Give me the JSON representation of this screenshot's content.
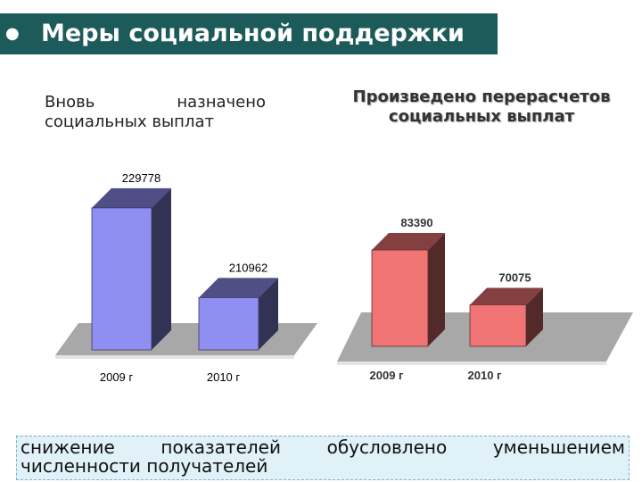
{
  "title": "Меры социальной поддержки",
  "note": "снижение показателей обусловлено уменьшением численности получателей",
  "chart_data": [
    {
      "type": "bar3d",
      "title": "Вновь назначено социальных выплат",
      "categories": [
        "2009 г",
        "2010 г"
      ],
      "values": [
        229778,
        210962
      ],
      "color": "#8f8ff2",
      "ylim": [
        200000,
        235000
      ]
    },
    {
      "type": "bar3d",
      "title": "Произведено перерасчетов социальных выплат",
      "categories": [
        "2009 г",
        "2010 г"
      ],
      "values": [
        83390,
        70075
      ],
      "color": "#f07474",
      "ylim": [
        60000,
        90000
      ]
    }
  ]
}
